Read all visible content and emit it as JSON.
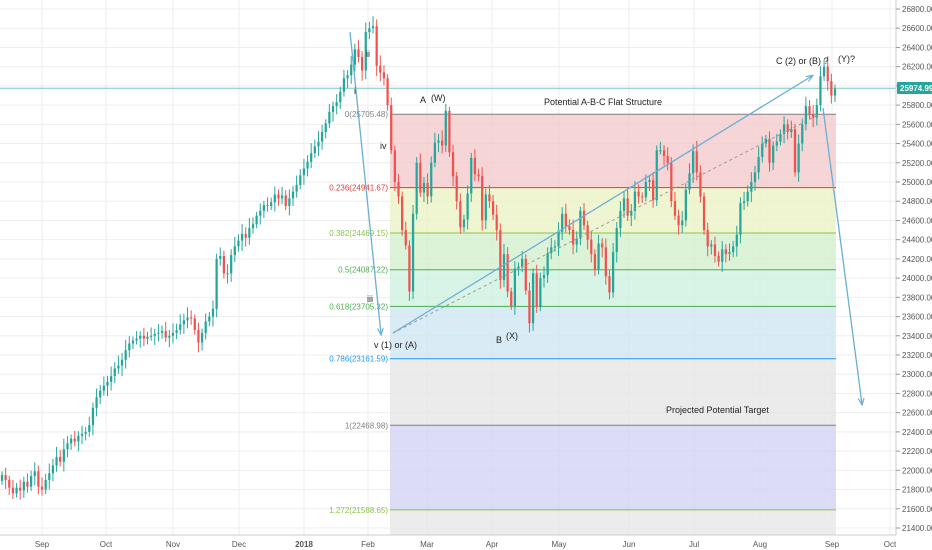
{
  "chart_data": {
    "type": "candlestick",
    "ylim": [
      21300,
      26900
    ],
    "y_ticks": [
      21400,
      21600,
      21800,
      22000,
      22200,
      22400,
      22600,
      22800,
      23000,
      23200,
      23400,
      23600,
      23800,
      24000,
      24200,
      24400,
      24600,
      24800,
      25000,
      25200,
      25400,
      25600,
      25800,
      26000,
      26200,
      26400,
      26600,
      26800
    ],
    "y_tick_labels": [
      "21400.00",
      "21600.00",
      "21800.00",
      "22000.00",
      "22200.00",
      "22400.00",
      "22600.00",
      "22800.00",
      "23000.00",
      "23200.00",
      "23400.00",
      "23600.00",
      "23800.00",
      "24000.00",
      "24200.00",
      "24400.00",
      "24600.00",
      "24800.00",
      "25000.00",
      "25200.00",
      "25400.00",
      "25600.00",
      "25800.00",
      "26000.00",
      "26200.00",
      "26400.00",
      "26600.00",
      "26800.00"
    ],
    "x_labels": [
      "Sep",
      "Oct",
      "Nov",
      "Dec",
      "2018",
      "Feb",
      "Mar",
      "Apr",
      "May",
      "Jun",
      "Jul",
      "Aug",
      "Sep",
      "Oct"
    ],
    "current_price": {
      "label": "25974.99",
      "value": 25974.99,
      "color": "#26a69a"
    },
    "fib_levels": [
      {
        "label": "0(25705.48)",
        "value": 25705.48,
        "color": "#808080"
      },
      {
        "label": "0.236(24941.67)",
        "value": 24941.67,
        "color": "#e53935"
      },
      {
        "label": "0.382(24469.15)",
        "value": 24469.15,
        "color": "#8bc34a"
      },
      {
        "label": "0.5(24087.22)",
        "value": 24087.22,
        "color": "#4caf50"
      },
      {
        "label": "0.618(23705.32)",
        "value": 23705.32,
        "color": "#4caf50"
      },
      {
        "label": "0.786(23161.59)",
        "value": 23161.59,
        "color": "#2196f3"
      },
      {
        "label": "1(22468.98)",
        "value": 22468.98,
        "color": "#808080"
      },
      {
        "label": "1.272(21588.65)",
        "value": 21588.65,
        "color": "#8bc34a"
      }
    ],
    "fib_zone_colors": [
      "#f2c7c7",
      "#eaf2c2",
      "#d2efcb",
      "#cbf0df",
      "#cce4f2",
      "#e4e4e4",
      "#d0d0f4",
      "#e6e6e6"
    ],
    "closes": [
      21950,
      21900,
      21820,
      21760,
      21820,
      21790,
      21880,
      21830,
      21940,
      21990,
      21830,
      21800,
      21900,
      21970,
      22050,
      22140,
      22090,
      22220,
      22280,
      22330,
      22300,
      22360,
      22380,
      22400,
      22470,
      22650,
      22760,
      22830,
      22880,
      22920,
      22980,
      23060,
      23090,
      23150,
      23250,
      23320,
      23350,
      23370,
      23400,
      23370,
      23390,
      23400,
      23420,
      23430,
      23450,
      23380,
      23400,
      23430,
      23460,
      23520,
      23560,
      23590,
      23580,
      23460,
      23330,
      23430,
      23550,
      23600,
      23680,
      24200,
      24230,
      24050,
      24050,
      24240,
      24330,
      24390,
      24460,
      24420,
      24520,
      24560,
      24650,
      24700,
      24760,
      24750,
      24790,
      24870,
      24830,
      24860,
      24750,
      24830,
      24900,
      24970,
      25070,
      25140,
      25210,
      25300,
      25370,
      25420,
      25520,
      25610,
      25730,
      25790,
      25830,
      25940,
      26080,
      26110,
      26220,
      26380,
      26300,
      26160,
      26560,
      26600,
      26620,
      26210,
      26140,
      26080,
      25800,
      25330,
      25000,
      24850,
      24500,
      24340,
      23860,
      24670,
      25200,
      24890,
      24990,
      24850,
      25200,
      25410,
      25430,
      25380,
      25740,
      25310,
      25060,
      24800,
      24530,
      24610,
      24880,
      25250,
      25080,
      25060,
      24600,
      24870,
      24800,
      24660,
      24500,
      23980,
      24250,
      23860,
      23710,
      24100,
      24120,
      24200,
      23870,
      23530,
      24050,
      23700,
      24000,
      24030,
      24260,
      24320,
      24330,
      24480,
      24670,
      24540,
      24500,
      24350,
      24410,
      24700,
      24550,
      24400,
      24250,
      24090,
      24360,
      24320,
      24020,
      23850,
      24270,
      24520,
      24700,
      24830,
      24650,
      24700,
      24900,
      24850,
      24840,
      25000,
      25020,
      24810,
      25330,
      25330,
      25270,
      25200,
      24800,
      24650,
      24550,
      24600,
      24920,
      25090,
      25320,
      25100,
      24850,
      24500,
      24330,
      24350,
      24230,
      24170,
      24300,
      24250,
      24270,
      24330,
      24450,
      24780,
      24800,
      24900,
      25000,
      25100,
      25260,
      25400,
      25450,
      25200,
      25380,
      25420,
      25500,
      25600,
      25520,
      25550,
      25100,
      25400,
      25600,
      25790,
      25700,
      25670,
      25800,
      26100,
      26200,
      26050,
      25900,
      25970
    ]
  },
  "annotations": {
    "title_structure": "Potential A-B-C Flat Structure",
    "projected_target": "Projected Potential Target",
    "label_a": "A",
    "label_w": "(W)",
    "label_b": "B",
    "label_x": "(X)",
    "label_c": "C (2) or (B) ?",
    "label_y": "(Y)?",
    "label_v": "v (1) or (A)",
    "label_ii": "ii",
    "label_i": "i",
    "label_iv": "iv",
    "label_iii": "iii"
  },
  "colors": {
    "up": "#26a69a",
    "down": "#ef5350",
    "arrow": "#6aaed6",
    "grid": "#eeeeee"
  }
}
